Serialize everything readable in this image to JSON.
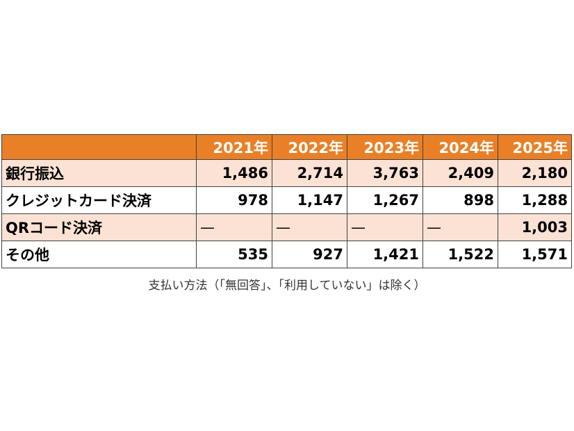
{
  "table": {
    "header": [
      "2021年",
      "2022年",
      "2023年",
      "2024年",
      "2025年"
    ],
    "rows": [
      {
        "label": "銀行振込",
        "cells": [
          "1,486",
          "2,714",
          "3,763",
          "2,409",
          "2,180"
        ]
      },
      {
        "label": "クレジットカード決済",
        "cells": [
          "978",
          "1,147",
          "1,267",
          "898",
          "1,288"
        ]
      },
      {
        "label": "QRコード決済",
        "cells": [
          "—",
          "—",
          "—",
          "—",
          "1,003"
        ]
      },
      {
        "label": "その他",
        "cells": [
          "535",
          "927",
          "1,421",
          "1,522",
          "1,571"
        ]
      }
    ]
  },
  "caption": "支払い方法（「無回答」、「利用していない」は除く）"
}
